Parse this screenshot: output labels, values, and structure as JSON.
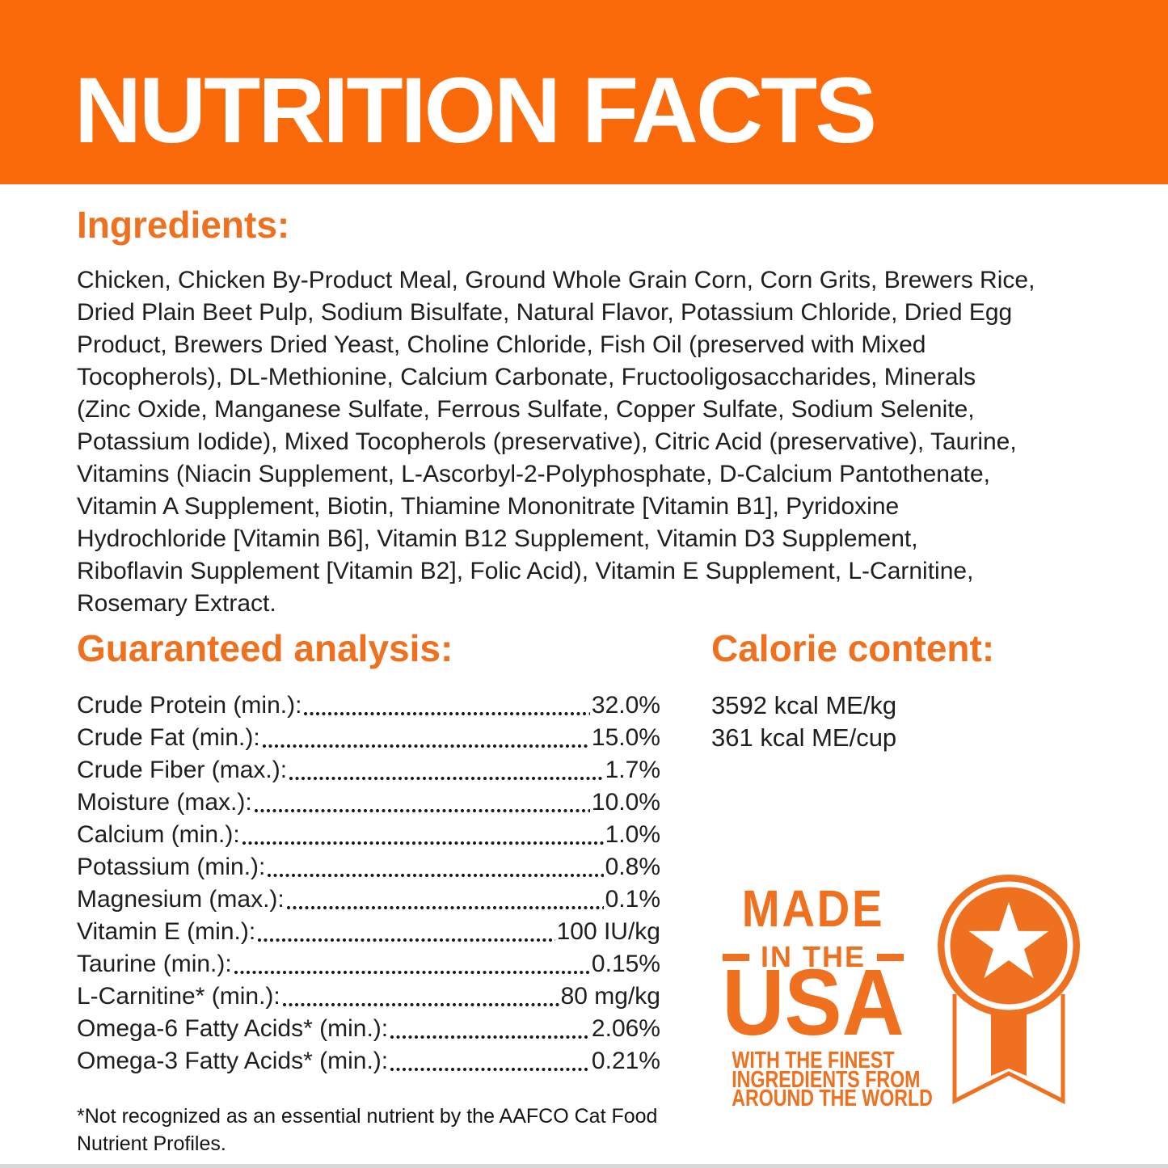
{
  "colors": {
    "band": "#FB6A0A",
    "accent": "#EF711F",
    "text": "#1E1E1E",
    "bottom_strip": "#D8D8D8",
    "title_text": "#FFFFFF"
  },
  "header": {
    "title": "NUTRITION FACTS"
  },
  "ingredients": {
    "heading": "Ingredients:",
    "lines": [
      "Chicken, Chicken By-Product Meal, Ground Whole Grain Corn, Corn Grits, Brewers Rice,",
      "Dried Plain Beet Pulp, Sodium Bisulfate, Natural Flavor, Potassium Chloride, Dried Egg",
      "Product, Brewers Dried Yeast, Choline Chloride, Fish Oil (preserved with Mixed",
      "Tocopherols), DL-Methionine, Calcium Carbonate, Fructooligosaccharides, Minerals",
      "(Zinc Oxide, Manganese Sulfate, Ferrous Sulfate, Copper Sulfate, Sodium Selenite,",
      "Potassium Iodide), Mixed Tocopherols (preservative), Citric Acid (preservative), Taurine,",
      "Vitamins (Niacin Supplement, L-Ascorbyl-2-Polyphosphate, D-Calcium Pantothenate,",
      "Vitamin A Supplement, Biotin, Thiamine Mononitrate [Vitamin B1], Pyridoxine",
      "Hydrochloride [Vitamin B6], Vitamin B12 Supplement, Vitamin D3 Supplement,",
      "Riboflavin Supplement [Vitamin B2], Folic Acid), Vitamin E Supplement, L-Carnitine,",
      "Rosemary Extract."
    ]
  },
  "guaranteed_analysis": {
    "heading": "Guaranteed analysis:",
    "rows": [
      {
        "label": "Crude Protein (min.):",
        "value": "32.0%"
      },
      {
        "label": "Crude Fat (min.):",
        "value": "15.0%"
      },
      {
        "label": "Crude Fiber (max.):",
        "value": "1.7%"
      },
      {
        "label": "Moisture (max.):",
        "value": "10.0%"
      },
      {
        "label": "Calcium (min.):",
        "value": "1.0%"
      },
      {
        "label": "Potassium (min.):",
        "value": "0.8%"
      },
      {
        "label": "Magnesium (max.):",
        "value": "0.1%"
      },
      {
        "label": "Vitamin E (min.):",
        "value": "100 IU/kg"
      },
      {
        "label": "Taurine (min.):",
        "value": "0.15%"
      },
      {
        "label": "L-Carnitine* (min.):",
        "value": "80 mg/kg"
      },
      {
        "label": "Omega-6 Fatty Acids* (min.):",
        "value": "2.06%"
      },
      {
        "label": "Omega-3 Fatty Acids* (min.):",
        "value": "0.21%"
      }
    ]
  },
  "calorie_content": {
    "heading": "Calorie content:",
    "lines": [
      "3592 kcal ME/kg",
      "361 kcal ME/cup"
    ]
  },
  "made_in_usa": {
    "line1": "MADE",
    "line2": "IN THE",
    "line3": "USA",
    "subtext": [
      "WITH THE FINEST",
      "INGREDIENTS FROM",
      "AROUND THE WORLD"
    ],
    "icon": "star-medal-ribbon-icon"
  },
  "footnote": {
    "lines": [
      "*Not recognized as an essential nutrient by the AAFCO Cat Food",
      "Nutrient Profiles."
    ]
  }
}
